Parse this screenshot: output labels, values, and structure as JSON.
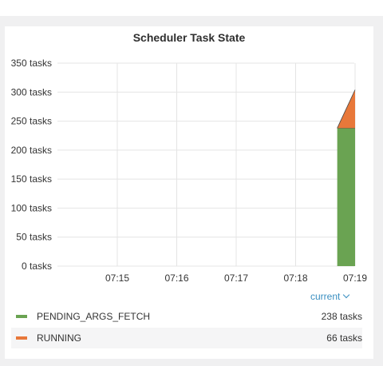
{
  "panel": {
    "title": "Scheduler Task State",
    "current_label": "current"
  },
  "legend": [
    {
      "name": "PENDING_ARGS_FETCH",
      "value": "238 tasks",
      "color": "#6aa352"
    },
    {
      "name": "RUNNING",
      "value": "66 tasks",
      "color": "#e8783a"
    }
  ],
  "chart_data": {
    "type": "area",
    "title": "Scheduler Task State",
    "xlabel": "",
    "ylabel": "",
    "stacked": true,
    "x_ticks": [
      "07:15",
      "07:16",
      "07:17",
      "07:18",
      "07:19"
    ],
    "y_ticks": [
      "0 tasks",
      "50 tasks",
      "100 tasks",
      "150 tasks",
      "200 tasks",
      "250 tasks",
      "300 tasks",
      "350 tasks"
    ],
    "ylim": [
      0,
      350
    ],
    "x": [
      "07:18.7",
      "07:19.0"
    ],
    "series": [
      {
        "name": "PENDING_ARGS_FETCH",
        "color": "#6aa352",
        "values": [
          238,
          238
        ]
      },
      {
        "name": "RUNNING",
        "color": "#e8783a",
        "values": [
          0,
          66
        ]
      }
    ],
    "grid": true
  }
}
